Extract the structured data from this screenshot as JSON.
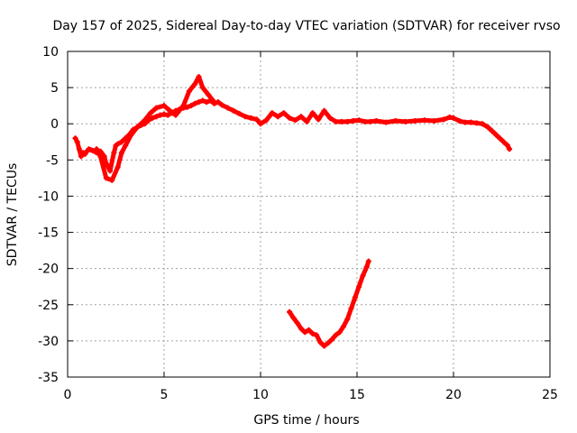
{
  "chart_data": {
    "type": "line",
    "title": "Day 157 of 2025, Sidereal Day-to-day VTEC variation (SDTVAR) for receiver rvso",
    "xlabel": "GPS time / hours",
    "ylabel": "SDTVAR / TECUs",
    "xlim": [
      0,
      25
    ],
    "ylim": [
      -35,
      10
    ],
    "xticks": [
      0,
      5,
      10,
      15,
      20,
      25
    ],
    "yticks": [
      10,
      5,
      0,
      -5,
      -10,
      -15,
      -20,
      -25,
      -30,
      -35
    ],
    "grid": true,
    "series": [
      {
        "name": "SDTVAR main trace",
        "color": "#ff0000",
        "x": [
          0.4,
          0.5,
          0.6,
          0.7,
          0.8,
          0.9,
          1.0,
          1.1,
          1.2,
          1.3,
          1.5,
          1.7,
          1.9,
          2.0,
          2.2,
          2.4,
          2.5,
          2.6,
          2.8,
          3.0,
          3.2,
          3.4,
          3.6,
          3.8,
          4.0,
          4.2,
          4.4,
          4.6,
          4.8,
          5.0,
          5.2,
          5.4,
          5.6,
          5.8,
          6.0,
          6.2,
          6.4,
          6.6,
          6.8,
          7.0,
          7.2,
          7.4,
          7.6,
          7.8,
          8.0,
          8.3,
          8.6,
          8.9,
          9.2,
          9.5,
          9.8,
          10.0,
          10.3,
          10.6,
          10.9,
          11.2,
          11.5,
          11.8,
          12.1,
          12.4,
          12.7,
          13.0,
          13.3,
          13.6,
          13.9,
          14.2,
          14.5,
          14.8,
          15.1,
          15.4,
          15.7,
          16.0,
          16.5,
          17.0,
          17.5,
          18.0,
          18.5,
          19.0,
          19.5,
          19.8,
          20.0,
          20.3,
          20.6,
          20.9,
          21.2,
          21.5,
          21.8,
          22.0,
          22.2,
          22.4,
          22.6,
          22.8,
          22.9
        ],
        "y": [
          -2,
          -2.5,
          -3.5,
          -4.5,
          -4,
          -4.2,
          -3.8,
          -3.5,
          -3.6,
          -3.7,
          -4,
          -3.8,
          -4.5,
          -5.5,
          -6.5,
          -4,
          -3,
          -2.8,
          -2.5,
          -2,
          -1.5,
          -0.8,
          -0.5,
          -0.2,
          0,
          0.5,
          0.8,
          1,
          1.2,
          1.3,
          1.2,
          1.5,
          1.8,
          2,
          2.2,
          2.3,
          2.5,
          2.8,
          3,
          3.2,
          3,
          3.2,
          2.8,
          3,
          2.6,
          2.2,
          1.8,
          1.4,
          1,
          0.8,
          0.6,
          0,
          0.5,
          1.5,
          1,
          1.5,
          0.8,
          0.5,
          1,
          0.3,
          1.5,
          0.6,
          1.8,
          0.8,
          0.3,
          0.3,
          0.3,
          0.4,
          0.5,
          0.3,
          0.3,
          0.4,
          0.2,
          0.4,
          0.3,
          0.4,
          0.5,
          0.4,
          0.6,
          0.9,
          0.8,
          0.4,
          0.2,
          0.2,
          0.1,
          0,
          -0.5,
          -1,
          -1.5,
          -2,
          -2.5,
          -3,
          -3.5
        ]
      },
      {
        "name": "SDTVAR secondary trace",
        "color": "#ff0000",
        "x": [
          1.5,
          1.7,
          2.0,
          2.3,
          2.6,
          2.8,
          3.0,
          3.3,
          3.6,
          4.0,
          4.3,
          4.6,
          5.0,
          5.3,
          5.6,
          6.0,
          6.3,
          6.6,
          6.8,
          7.0,
          7.3,
          7.6
        ],
        "y": [
          -3.5,
          -4.5,
          -7.5,
          -7.8,
          -6.0,
          -4.0,
          -3.0,
          -1.5,
          -0.5,
          0.5,
          1.5,
          2.2,
          2.5,
          1.8,
          1.2,
          2.5,
          4.5,
          5.5,
          6.5,
          5.0,
          4.0,
          3.0
        ]
      },
      {
        "name": "SDTVAR lower segment",
        "color": "#ff0000",
        "x": [
          11.5,
          11.7,
          11.9,
          12.1,
          12.3,
          12.5,
          12.7,
          12.9,
          13.1,
          13.3,
          13.5,
          13.7,
          13.9,
          14.1,
          14.3,
          14.5,
          14.7,
          14.9,
          15.1,
          15.3,
          15.5,
          15.6
        ],
        "y": [
          -26.0,
          -26.8,
          -27.5,
          -28.3,
          -28.8,
          -28.5,
          -29.0,
          -29.2,
          -30.2,
          -30.7,
          -30.3,
          -29.8,
          -29.2,
          -28.8,
          -28.0,
          -27.0,
          -25.5,
          -24.0,
          -22.5,
          -21.0,
          -19.8,
          -19.0
        ]
      }
    ]
  }
}
